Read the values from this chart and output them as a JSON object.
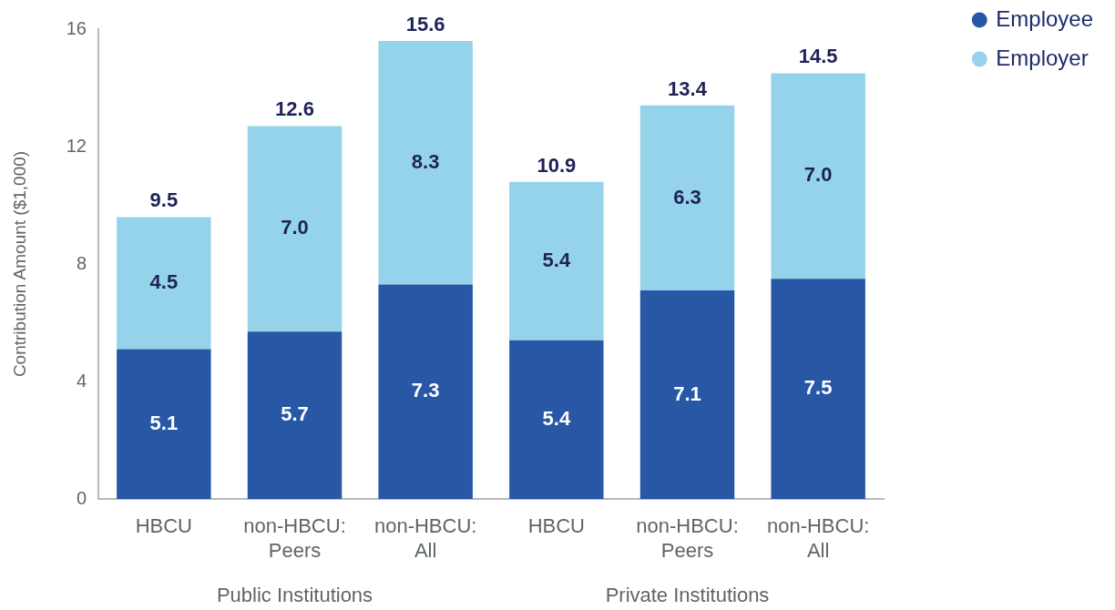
{
  "chart_data": {
    "type": "bar",
    "ylabel": "Contribution Amount ($1,000)",
    "categories": [
      "HBCU",
      "non-HBCU: Peers",
      "non-HBCU: All",
      "HBCU",
      "non-HBCU: Peers",
      "non-HBCU: All"
    ],
    "series": [
      {
        "name": "Employee",
        "color": "#2757a5",
        "values": [
          5.1,
          5.7,
          7.3,
          5.4,
          7.1,
          7.5
        ],
        "value_labels": [
          "5.1",
          "5.7",
          "7.3",
          "5.4",
          "7.1",
          "7.5"
        ]
      },
      {
        "name": "Employer",
        "color": "#95d3eb",
        "values": [
          4.5,
          7.0,
          8.3,
          5.4,
          6.3,
          7.0
        ],
        "value_labels": [
          "4.5",
          "7.0",
          "8.3",
          "5.4",
          "6.3",
          "7.0"
        ]
      }
    ],
    "stacked": true,
    "totals": [
      "9.5",
      "12.6",
      "15.6",
      "10.9",
      "13.4",
      "14.5"
    ],
    "ylim": [
      0,
      16
    ],
    "yticks": [
      0,
      4,
      8,
      12,
      16
    ],
    "grid": false,
    "legend": "top right",
    "annotations": [
      "Public Institutions",
      "Private Institutions"
    ]
  }
}
